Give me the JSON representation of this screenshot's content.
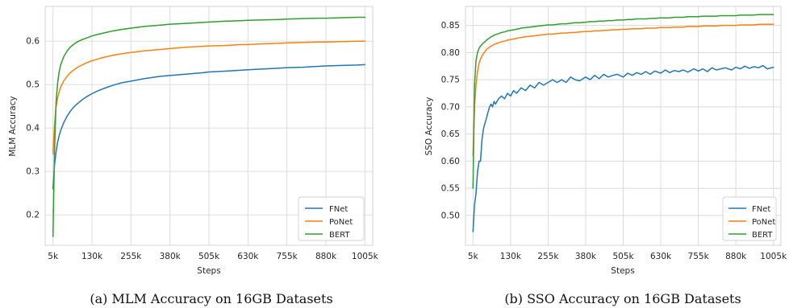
{
  "figure": {
    "captions": [
      "(a) MLM Accuracy on 16GB Datasets",
      "(b) SSO Accuracy on 16GB Datasets"
    ]
  },
  "chart_data": [
    {
      "type": "line",
      "xlabel": "Steps",
      "ylabel": "MLM Accuracy",
      "xlim": [
        -20000,
        1030000
      ],
      "ylim": [
        0.13,
        0.68
      ],
      "x_ticks": [
        5000,
        130000,
        255000,
        380000,
        505000,
        630000,
        755000,
        880000,
        1005000
      ],
      "x_tick_labels": [
        "5k",
        "130k",
        "255k",
        "380k",
        "505k",
        "630k",
        "755k",
        "880k",
        "1005k"
      ],
      "y_ticks": [
        0.2,
        0.3,
        0.4,
        0.5,
        0.6
      ],
      "y_tick_labels": [
        "0.2",
        "0.3",
        "0.4",
        "0.5",
        "0.6"
      ],
      "grid": true,
      "legend": "lower right",
      "x": [
        5000,
        10000,
        15000,
        20000,
        25000,
        30000,
        40000,
        50000,
        60000,
        70000,
        80000,
        90000,
        100000,
        115000,
        130000,
        150000,
        175000,
        200000,
        225000,
        255000,
        300000,
        350000,
        380000,
        430000,
        480000,
        505000,
        555000,
        605000,
        630000,
        680000,
        730000,
        755000,
        805000,
        855000,
        880000,
        930000,
        980000,
        1005000
      ],
      "series": [
        {
          "name": "FNet",
          "color": "#1f77b4",
          "values": [
            0.26,
            0.315,
            0.345,
            0.368,
            0.383,
            0.395,
            0.413,
            0.427,
            0.438,
            0.447,
            0.454,
            0.46,
            0.466,
            0.473,
            0.479,
            0.486,
            0.493,
            0.499,
            0.504,
            0.508,
            0.514,
            0.519,
            0.521,
            0.524,
            0.527,
            0.529,
            0.531,
            0.533,
            0.534,
            0.536,
            0.538,
            0.539,
            0.54,
            0.542,
            0.543,
            0.544,
            0.545,
            0.546
          ]
        },
        {
          "name": "PoNet",
          "color": "#ff7f0e",
          "values": [
            0.34,
            0.41,
            0.448,
            0.47,
            0.484,
            0.495,
            0.509,
            0.519,
            0.527,
            0.533,
            0.538,
            0.542,
            0.546,
            0.551,
            0.555,
            0.559,
            0.564,
            0.568,
            0.571,
            0.574,
            0.578,
            0.581,
            0.583,
            0.586,
            0.588,
            0.589,
            0.59,
            0.592,
            0.592,
            0.594,
            0.595,
            0.596,
            0.597,
            0.598,
            0.598,
            0.599,
            0.6,
            0.6
          ]
        },
        {
          "name": "BERT",
          "color": "#2ca02c",
          "values": [
            0.15,
            0.35,
            0.46,
            0.505,
            0.53,
            0.546,
            0.565,
            0.577,
            0.586,
            0.592,
            0.597,
            0.601,
            0.604,
            0.608,
            0.612,
            0.616,
            0.62,
            0.624,
            0.627,
            0.63,
            0.634,
            0.637,
            0.639,
            0.641,
            0.643,
            0.644,
            0.646,
            0.647,
            0.648,
            0.649,
            0.65,
            0.651,
            0.652,
            0.653,
            0.653,
            0.654,
            0.655,
            0.655
          ]
        }
      ]
    },
    {
      "type": "line",
      "xlabel": "Steps",
      "ylabel": "SSO Accuracy",
      "xlim": [
        -20000,
        1030000
      ],
      "ylim": [
        0.445,
        0.885
      ],
      "x_ticks": [
        5000,
        130000,
        255000,
        380000,
        505000,
        630000,
        755000,
        880000,
        1005000
      ],
      "x_tick_labels": [
        "5k",
        "130k",
        "255k",
        "380k",
        "505k",
        "630k",
        "755k",
        "880k",
        "1005k"
      ],
      "y_ticks": [
        0.5,
        0.55,
        0.6,
        0.65,
        0.7,
        0.75,
        0.8,
        0.85
      ],
      "y_tick_labels": [
        "0.50",
        "0.55",
        "0.60",
        "0.65",
        "0.70",
        "0.75",
        "0.80",
        "0.85"
      ],
      "grid": true,
      "legend": "lower right",
      "x": [
        5000,
        10000,
        15000,
        20000,
        25000,
        30000,
        35000,
        40000,
        45000,
        50000,
        55000,
        60000,
        65000,
        70000,
        75000,
        80000,
        90000,
        100000,
        110000,
        120000,
        130000,
        140000,
        150000,
        165000,
        180000,
        195000,
        210000,
        225000,
        240000,
        255000,
        270000,
        285000,
        300000,
        315000,
        330000,
        345000,
        360000,
        380000,
        395000,
        410000,
        425000,
        440000,
        455000,
        470000,
        485000,
        505000,
        520000,
        535000,
        550000,
        565000,
        580000,
        595000,
        610000,
        630000,
        645000,
        660000,
        675000,
        690000,
        705000,
        720000,
        740000,
        755000,
        770000,
        785000,
        800000,
        815000,
        830000,
        845000,
        865000,
        880000,
        895000,
        910000,
        925000,
        940000,
        955000,
        970000,
        985000,
        1005000
      ],
      "series": [
        {
          "name": "FNet",
          "color": "#1f77b4",
          "values": [
            0.47,
            0.52,
            0.54,
            0.58,
            0.6,
            0.6,
            0.64,
            0.66,
            0.67,
            0.68,
            0.69,
            0.7,
            0.705,
            0.7,
            0.71,
            0.705,
            0.715,
            0.72,
            0.715,
            0.725,
            0.72,
            0.73,
            0.725,
            0.735,
            0.73,
            0.74,
            0.735,
            0.745,
            0.74,
            0.745,
            0.75,
            0.745,
            0.75,
            0.745,
            0.755,
            0.75,
            0.748,
            0.755,
            0.75,
            0.758,
            0.752,
            0.76,
            0.755,
            0.758,
            0.76,
            0.755,
            0.762,
            0.758,
            0.763,
            0.76,
            0.765,
            0.76,
            0.766,
            0.762,
            0.768,
            0.763,
            0.767,
            0.765,
            0.768,
            0.764,
            0.77,
            0.766,
            0.77,
            0.765,
            0.772,
            0.768,
            0.77,
            0.772,
            0.768,
            0.773,
            0.77,
            0.775,
            0.771,
            0.774,
            0.772,
            0.776,
            0.77,
            0.773
          ]
        },
        {
          "name": "PoNet",
          "color": "#ff7f0e",
          "values": [
            0.61,
            0.7,
            0.74,
            0.765,
            0.78,
            0.788,
            0.794,
            0.798,
            0.802,
            0.806,
            0.808,
            0.81,
            0.812,
            0.813,
            0.815,
            0.816,
            0.818,
            0.82,
            0.821,
            0.823,
            0.824,
            0.825,
            0.826,
            0.828,
            0.829,
            0.83,
            0.831,
            0.832,
            0.833,
            0.834,
            0.834,
            0.835,
            0.836,
            0.836,
            0.837,
            0.837,
            0.838,
            0.839,
            0.839,
            0.84,
            0.84,
            0.841,
            0.841,
            0.842,
            0.842,
            0.843,
            0.843,
            0.844,
            0.844,
            0.844,
            0.845,
            0.845,
            0.845,
            0.846,
            0.846,
            0.846,
            0.847,
            0.847,
            0.847,
            0.848,
            0.848,
            0.848,
            0.849,
            0.849,
            0.849,
            0.849,
            0.85,
            0.85,
            0.85,
            0.85,
            0.851,
            0.851,
            0.851,
            0.851,
            0.852,
            0.852,
            0.852,
            0.852
          ]
        },
        {
          "name": "BERT",
          "color": "#2ca02c",
          "values": [
            0.55,
            0.74,
            0.785,
            0.8,
            0.808,
            0.812,
            0.815,
            0.818,
            0.82,
            0.823,
            0.825,
            0.827,
            0.829,
            0.83,
            0.832,
            0.833,
            0.835,
            0.837,
            0.838,
            0.84,
            0.841,
            0.842,
            0.843,
            0.845,
            0.846,
            0.847,
            0.848,
            0.849,
            0.85,
            0.851,
            0.851,
            0.852,
            0.853,
            0.853,
            0.854,
            0.855,
            0.855,
            0.856,
            0.857,
            0.857,
            0.858,
            0.858,
            0.859,
            0.859,
            0.86,
            0.86,
            0.861,
            0.861,
            0.862,
            0.862,
            0.862,
            0.863,
            0.863,
            0.864,
            0.864,
            0.864,
            0.865,
            0.865,
            0.865,
            0.866,
            0.866,
            0.866,
            0.867,
            0.867,
            0.867,
            0.867,
            0.868,
            0.868,
            0.868,
            0.868,
            0.869,
            0.869,
            0.869,
            0.869,
            0.87,
            0.87,
            0.87,
            0.87
          ]
        }
      ]
    }
  ]
}
